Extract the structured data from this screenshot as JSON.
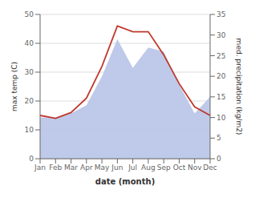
{
  "chart_data": {
    "type": "line",
    "categories": [
      "Jan",
      "Feb",
      "Mar",
      "Apr",
      "May",
      "Jun",
      "Jul",
      "Aug",
      "Sep",
      "Oct",
      "Nov",
      "Dec"
    ],
    "series": [
      {
        "type": "area",
        "color": "#b8c4e8",
        "axis": "y2",
        "values": [
          10,
          10,
          11,
          13,
          20,
          29,
          22,
          27,
          26,
          18,
          11,
          15
        ]
      },
      {
        "type": "line",
        "color": "#c0392b",
        "values": [
          15,
          14,
          16,
          21,
          32,
          46,
          44,
          44,
          36,
          26,
          18,
          15
        ]
      }
    ],
    "xlabel": "date (month)",
    "ylabel": "max temp (C)",
    "y2label": "med. precipitation (kg/m2)",
    "ylim": [
      0,
      50
    ],
    "yticks": [
      0,
      10,
      20,
      30,
      40,
      50
    ],
    "y2lim": [
      0,
      35
    ],
    "y2ticks": [
      0,
      5,
      10,
      15,
      20,
      25,
      30,
      35
    ],
    "grid": true
  }
}
